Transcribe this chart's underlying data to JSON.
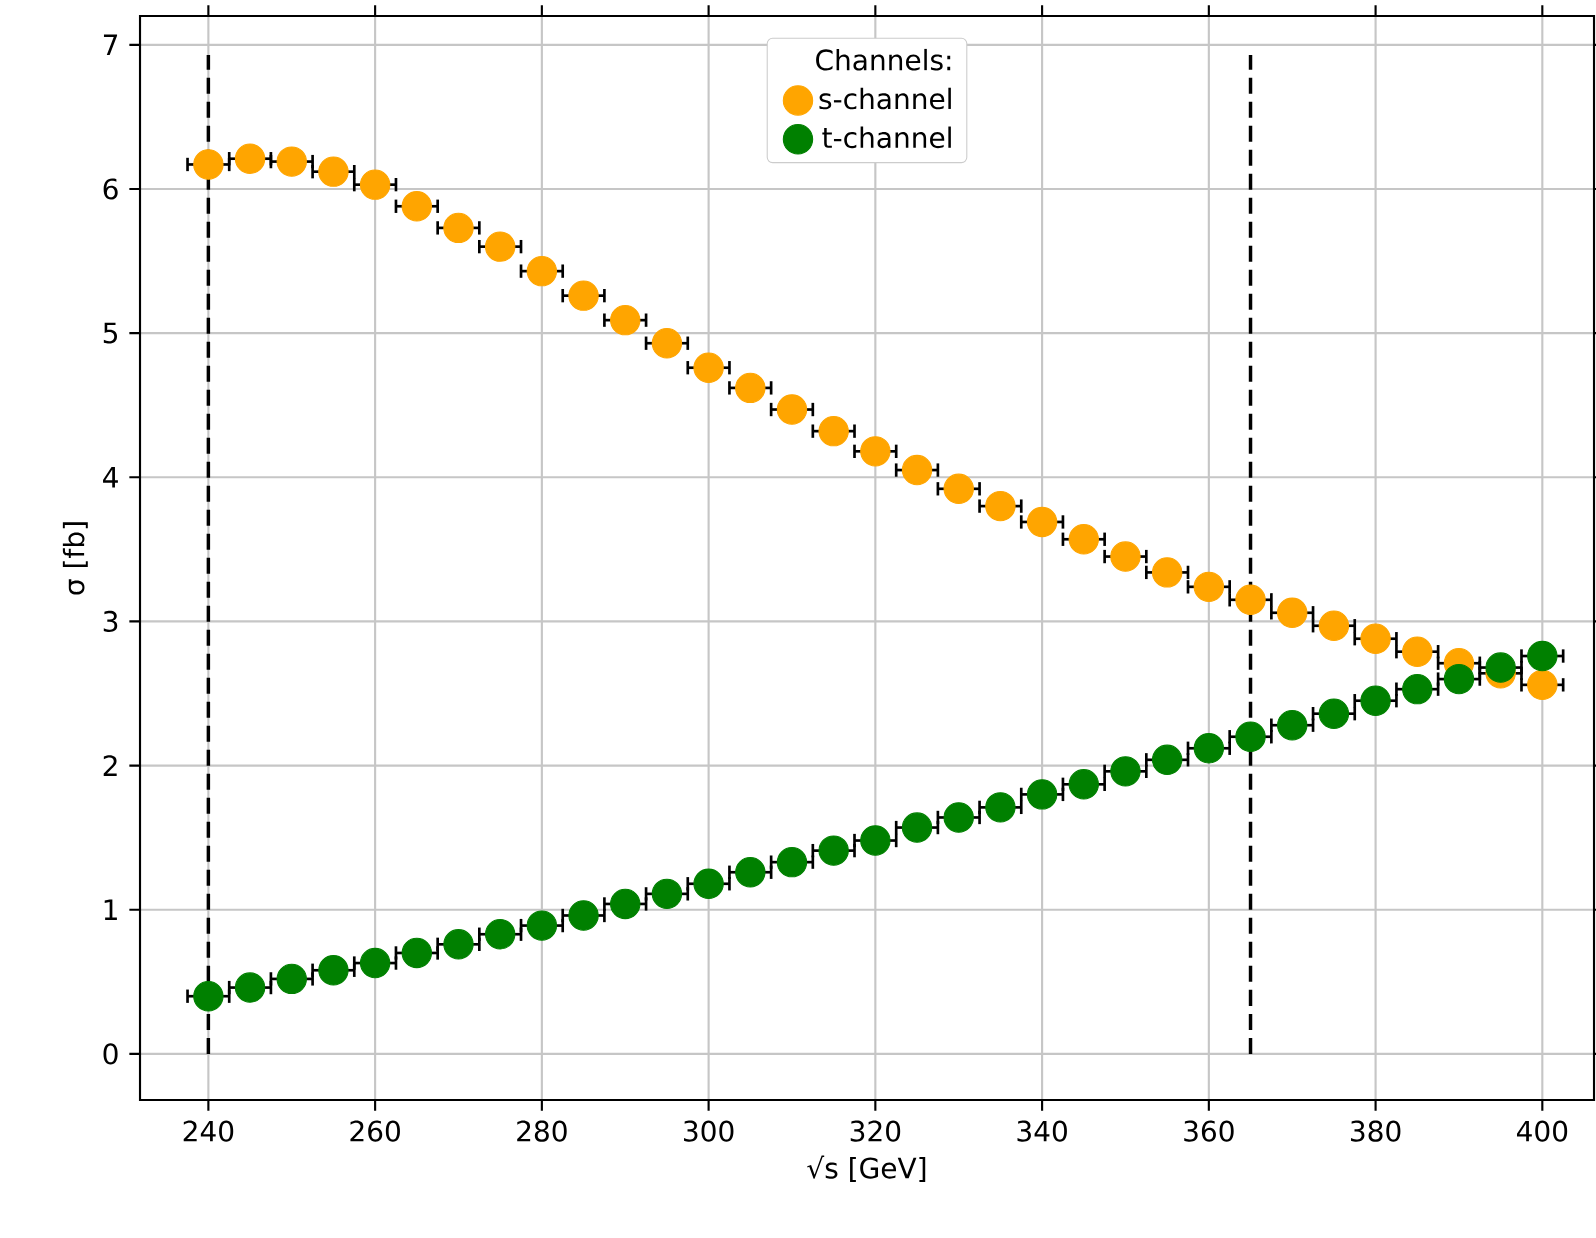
{
  "chart_data": {
    "type": "scatter",
    "xlabel": "√s [GeV]",
    "ylabel": "σ [fb]",
    "legend_title": "Channels:",
    "x": [
      240,
      245,
      250,
      255,
      260,
      265,
      270,
      275,
      280,
      285,
      290,
      295,
      300,
      305,
      310,
      315,
      320,
      325,
      330,
      335,
      340,
      345,
      350,
      355,
      360,
      365,
      370,
      375,
      380,
      385,
      390,
      395,
      400
    ],
    "series": [
      {
        "name": "s-channel",
        "color": "#ffa500",
        "values": [
          6.17,
          6.21,
          6.19,
          6.12,
          6.03,
          5.88,
          5.73,
          5.6,
          5.43,
          5.26,
          5.09,
          4.93,
          4.76,
          4.62,
          4.47,
          4.32,
          4.18,
          4.05,
          3.92,
          3.8,
          3.69,
          3.57,
          3.45,
          3.34,
          3.24,
          3.15,
          3.06,
          2.97,
          2.88,
          2.79,
          2.71,
          2.64,
          2.56
        ],
        "xerrors": [
          2.5,
          2.5,
          2.5,
          2.5,
          2.5,
          2.5,
          2.5,
          2.5,
          2.5,
          2.5,
          2.5,
          2.5,
          2.5,
          2.5,
          2.5,
          2.5,
          2.5,
          2.5,
          2.5,
          2.5,
          2.5,
          2.5,
          2.5,
          2.5,
          2.5,
          2.5,
          2.5,
          2.5,
          2.5,
          2.5,
          2.5,
          2.5,
          2.5
        ]
      },
      {
        "name": "t-channel",
        "color": "#008000",
        "values": [
          0.4,
          0.46,
          0.52,
          0.58,
          0.63,
          0.7,
          0.76,
          0.83,
          0.89,
          0.96,
          1.04,
          1.11,
          1.18,
          1.26,
          1.33,
          1.41,
          1.48,
          1.57,
          1.64,
          1.71,
          1.8,
          1.87,
          1.96,
          2.04,
          2.12,
          2.2,
          2.28,
          2.36,
          2.45,
          2.53,
          2.6,
          2.68,
          2.76
        ],
        "xerrors": [
          2.5,
          2.5,
          2.5,
          2.5,
          2.5,
          2.5,
          2.5,
          2.5,
          2.5,
          2.5,
          2.5,
          2.5,
          2.5,
          2.5,
          2.5,
          2.5,
          2.5,
          2.5,
          2.5,
          2.5,
          2.5,
          2.5,
          2.5,
          2.5,
          2.5,
          2.5,
          2.5,
          2.5,
          2.5,
          2.5,
          2.5,
          2.5,
          2.5
        ]
      }
    ],
    "xlim": [
      231.8,
      406.2
    ],
    "ylim": [
      -0.32,
      7.2
    ],
    "xticks": [
      240,
      260,
      280,
      300,
      320,
      340,
      360,
      380,
      400
    ],
    "yticks": [
      0,
      1,
      2,
      3,
      4,
      5,
      6,
      7
    ],
    "ref_lines": [
      {
        "axis": "x",
        "value": 240,
        "color": "#000000",
        "line_style": "dashed"
      },
      {
        "axis": "x",
        "value": 365,
        "color": "#000000",
        "line_style": "dashed"
      }
    ],
    "grid": true,
    "legend": "top"
  }
}
